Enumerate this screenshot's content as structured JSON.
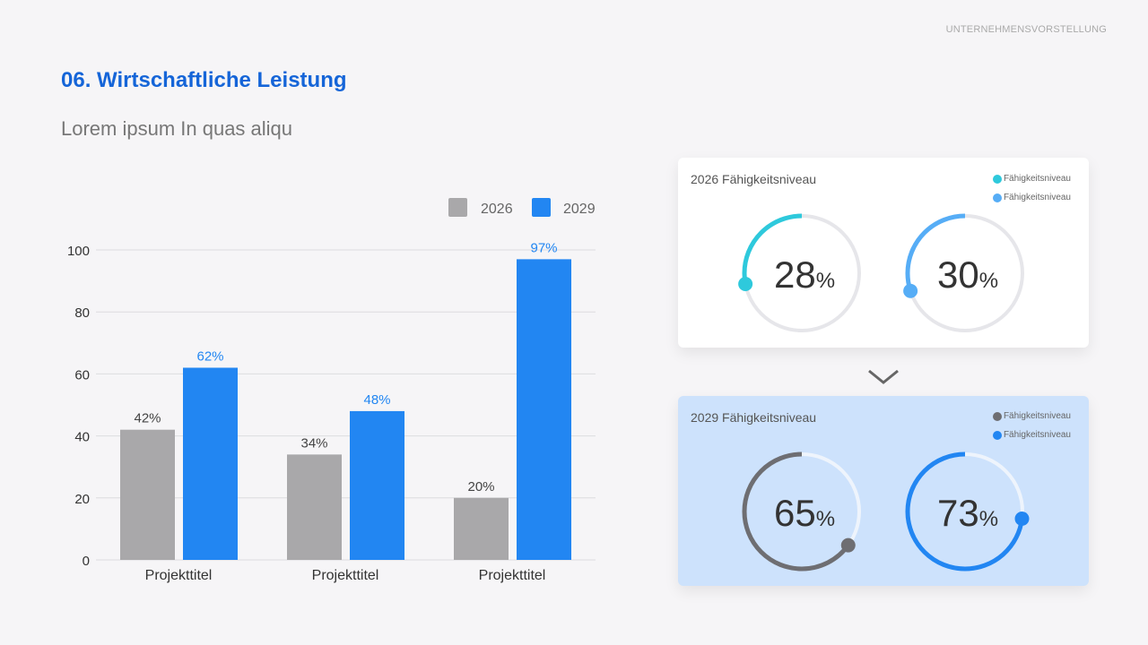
{
  "header": {
    "section": "UNTERNEHMENSVORSTELLUNG",
    "title": "06. Wirtschaftliche Leistung",
    "subtitle": "Lorem ipsum In quas aliqu"
  },
  "chart_data": {
    "type": "bar",
    "categories": [
      "Projekttitel",
      "Projekttitel",
      "Projekttitel"
    ],
    "series": [
      {
        "name": "2026",
        "values": [
          42,
          34,
          20
        ],
        "labels": [
          "42%",
          "34%",
          "20%"
        ],
        "color": "#a9a8aa"
      },
      {
        "name": "2029",
        "values": [
          62,
          48,
          97
        ],
        "labels": [
          "62%",
          "48%",
          "97%"
        ],
        "color": "#2286f2"
      }
    ],
    "yticks": [
      "0",
      "20",
      "40",
      "60",
      "80",
      "100"
    ],
    "ylim": [
      0,
      100
    ],
    "grid": true,
    "legend": "top-right"
  },
  "cards": [
    {
      "title": "2026 Fähigkeitsniveau",
      "legend": [
        "Fähigkeitsniveau",
        "Fähigkeitsniveau"
      ],
      "rings": [
        {
          "value": 28,
          "label": "28",
          "unit": "%",
          "color": "#2ec9dc"
        },
        {
          "value": 30,
          "label": "30",
          "unit": "%",
          "color": "#56adf6"
        }
      ],
      "track": "#e6e6ea"
    },
    {
      "title": "2029 Fähigkeitsniveau",
      "legend": [
        "Fähigkeitsniveau",
        "Fähigkeitsniveau"
      ],
      "rings": [
        {
          "value": 65,
          "label": "65",
          "unit": "%",
          "color": "#6e6e72"
        },
        {
          "value": 73,
          "label": "73",
          "unit": "%",
          "color": "#2286f2"
        }
      ],
      "track": "#eef4fc"
    }
  ],
  "arrow_icon": "chevron-down-icon"
}
